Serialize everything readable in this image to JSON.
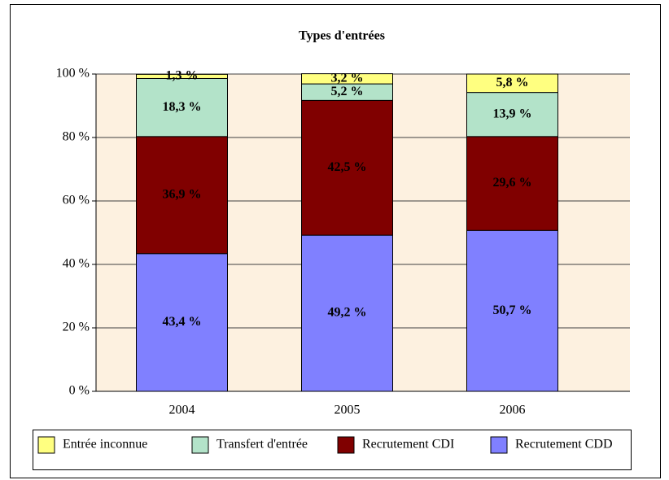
{
  "chart_data": {
    "type": "stacked-bar",
    "title": "Types d'entrées",
    "categories": [
      "2004",
      "2005",
      "2006"
    ],
    "series": [
      {
        "name": "Recrutement CDD",
        "color": "#8080ff",
        "values": [
          43.4,
          49.2,
          50.7
        ],
        "value_labels": [
          "43,4 %",
          "49,2 %",
          "50,7 %"
        ]
      },
      {
        "name": "Recrutement CDI",
        "color": "#800000",
        "values": [
          36.9,
          42.5,
          29.6
        ],
        "value_labels": [
          "36,9 %",
          "42,5 %",
          "29,6 %"
        ]
      },
      {
        "name": "Transfert d'entrée",
        "color": "#b3e3c9",
        "values": [
          18.3,
          5.2,
          13.9
        ],
        "value_labels": [
          "18,3 %",
          "5,2 %",
          "13,9 %"
        ]
      },
      {
        "name": "Entrée inconnue",
        "color": "#ffff80",
        "values": [
          1.3,
          3.2,
          5.8
        ],
        "value_labels": [
          "1,3 %",
          "3,2 %",
          "5,8 %"
        ]
      }
    ],
    "ylim": [
      0,
      100
    ],
    "yticks": [
      {
        "value": 0,
        "label": "0 %"
      },
      {
        "value": 20,
        "label": "20 %"
      },
      {
        "value": 40,
        "label": "40 %"
      },
      {
        "value": 60,
        "label": "60 %"
      },
      {
        "value": 80,
        "label": "80 %"
      },
      {
        "value": 100,
        "label": "100 %"
      }
    ],
    "grid": true,
    "legend": "bottom"
  }
}
